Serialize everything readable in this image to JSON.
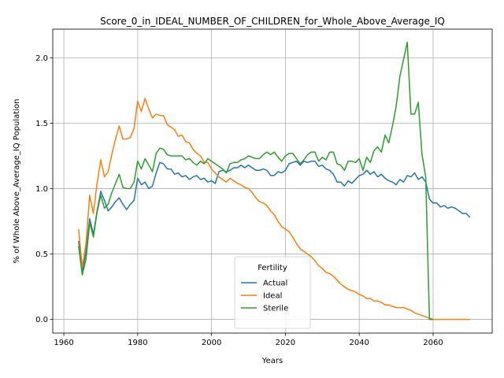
{
  "chart_data": {
    "type": "line",
    "title": "Score_0_in_IDEAL_NUMBER_OF_CHILDREN_for_Whole_Above_Average_IQ",
    "xlabel": "Years",
    "ylabel": "% of Whole Above_Average_IQ Population",
    "xlim": [
      1957,
      2076
    ],
    "ylim": [
      -0.105,
      2.22
    ],
    "xticks": [
      1960,
      1980,
      2000,
      2020,
      2040,
      2060
    ],
    "xtick_labels": [
      "1960",
      "1980",
      "2000",
      "2020",
      "2040",
      "2060"
    ],
    "yticks": [
      0.0,
      0.5,
      1.0,
      1.5,
      2.0
    ],
    "ytick_labels": [
      "0.0",
      "0.5",
      "1.0",
      "1.5",
      "2.0"
    ],
    "grid": true,
    "legend": {
      "title": "Fertility",
      "placement": "lower-center"
    },
    "series": [
      {
        "name": "Actual",
        "color": "#1f77b4",
        "x": [
          1964,
          1965,
          1966,
          1967,
          1968,
          1969,
          1970,
          1971,
          1972,
          1973,
          1974,
          1975,
          1976,
          1977,
          1978,
          1979,
          1980,
          1981,
          1982,
          1983,
          1984,
          1985,
          1986,
          1987,
          1988,
          1989,
          1990,
          1991,
          1992,
          1993,
          1994,
          1995,
          1996,
          1997,
          1998,
          1999,
          2000,
          2001,
          2002,
          2003,
          2004,
          2005,
          2006,
          2007,
          2008,
          2009,
          2010,
          2011,
          2012,
          2013,
          2014,
          2015,
          2016,
          2017,
          2018,
          2019,
          2020,
          2021,
          2022,
          2023,
          2024,
          2025,
          2026,
          2027,
          2028,
          2029,
          2030,
          2031,
          2032,
          2033,
          2034,
          2035,
          2036,
          2037,
          2038,
          2039,
          2040,
          2041,
          2042,
          2043,
          2044,
          2045,
          2046,
          2047,
          2048,
          2049,
          2050,
          2051,
          2052,
          2053,
          2054,
          2055,
          2056,
          2057,
          2058,
          2059,
          2060,
          2061,
          2062,
          2063,
          2064,
          2065,
          2066,
          2067,
          2068,
          2069,
          2070
        ],
        "y": [
          0.6,
          0.36,
          0.52,
          0.77,
          0.65,
          0.83,
          0.98,
          0.91,
          0.83,
          0.86,
          0.9,
          0.93,
          0.88,
          0.84,
          0.88,
          0.91,
          1.08,
          1.03,
          1.05,
          1.0,
          1.02,
          1.12,
          1.2,
          1.19,
          1.15,
          1.15,
          1.11,
          1.12,
          1.09,
          1.1,
          1.07,
          1.09,
          1.1,
          1.07,
          1.08,
          1.05,
          1.06,
          1.04,
          1.13,
          1.14,
          1.13,
          1.14,
          1.16,
          1.16,
          1.18,
          1.16,
          1.18,
          1.16,
          1.14,
          1.14,
          1.15,
          1.14,
          1.1,
          1.1,
          1.13,
          1.12,
          1.14,
          1.19,
          1.2,
          1.21,
          1.18,
          1.21,
          1.2,
          1.21,
          1.21,
          1.17,
          1.18,
          1.15,
          1.14,
          1.11,
          1.05,
          1.05,
          1.02,
          1.06,
          1.04,
          1.07,
          1.1,
          1.11,
          1.14,
          1.11,
          1.13,
          1.09,
          1.11,
          1.08,
          1.06,
          1.05,
          1.03,
          1.07,
          1.05,
          1.1,
          1.09,
          1.12,
          1.07,
          1.09,
          1.05,
          0.92,
          0.89,
          0.89,
          0.86,
          0.87,
          0.85,
          0.86,
          0.85,
          0.83,
          0.81,
          0.81,
          0.78
        ]
      },
      {
        "name": "Ideal",
        "color": "#ff7f0e",
        "x": [
          1964,
          1965,
          1966,
          1967,
          1968,
          1969,
          1970,
          1971,
          1972,
          1973,
          1974,
          1975,
          1976,
          1977,
          1978,
          1979,
          1980,
          1981,
          1982,
          1983,
          1984,
          1985,
          1986,
          1987,
          1988,
          1989,
          1990,
          1991,
          1992,
          1993,
          1994,
          1995,
          1996,
          1997,
          1998,
          1999,
          2000,
          2001,
          2002,
          2003,
          2004,
          2005,
          2006,
          2007,
          2008,
          2009,
          2010,
          2011,
          2012,
          2013,
          2014,
          2015,
          2016,
          2017,
          2018,
          2019,
          2020,
          2021,
          2022,
          2023,
          2024,
          2025,
          2026,
          2027,
          2028,
          2029,
          2030,
          2031,
          2032,
          2033,
          2034,
          2035,
          2036,
          2037,
          2038,
          2039,
          2040,
          2041,
          2042,
          2043,
          2044,
          2045,
          2046,
          2047,
          2048,
          2049,
          2050,
          2051,
          2052,
          2053,
          2054,
          2055,
          2056,
          2057,
          2058,
          2059,
          2060,
          2061,
          2062,
          2063,
          2064,
          2065,
          2066,
          2067,
          2068,
          2069,
          2070
        ],
        "y": [
          0.69,
          0.4,
          0.58,
          0.95,
          0.81,
          1.04,
          1.22,
          1.09,
          1.13,
          1.26,
          1.38,
          1.48,
          1.38,
          1.38,
          1.39,
          1.46,
          1.67,
          1.59,
          1.69,
          1.61,
          1.54,
          1.57,
          1.56,
          1.56,
          1.49,
          1.47,
          1.45,
          1.4,
          1.41,
          1.36,
          1.35,
          1.3,
          1.27,
          1.25,
          1.2,
          1.2,
          1.15,
          1.12,
          1.09,
          1.07,
          1.05,
          1.08,
          1.06,
          1.04,
          1.03,
          1.01,
          1.0,
          0.97,
          0.93,
          0.9,
          0.89,
          0.87,
          0.83,
          0.8,
          0.75,
          0.71,
          0.69,
          0.67,
          0.63,
          0.58,
          0.54,
          0.52,
          0.5,
          0.48,
          0.45,
          0.41,
          0.39,
          0.36,
          0.35,
          0.33,
          0.3,
          0.27,
          0.25,
          0.23,
          0.22,
          0.21,
          0.19,
          0.18,
          0.16,
          0.16,
          0.14,
          0.14,
          0.13,
          0.11,
          0.11,
          0.1,
          0.09,
          0.09,
          0.09,
          0.08,
          0.07,
          0.05,
          0.04,
          0.03,
          0.02,
          0.01,
          0.0,
          0.0,
          0.0,
          0.0,
          0.0,
          0.0,
          0.0,
          0.0,
          0.0,
          0.0,
          0.0
        ]
      },
      {
        "name": "Sterile",
        "color": "#2ca02c",
        "x": [
          1964,
          1965,
          1966,
          1967,
          1968,
          1969,
          1970,
          1971,
          1972,
          1973,
          1974,
          1975,
          1976,
          1977,
          1978,
          1979,
          1980,
          1981,
          1982,
          1983,
          1984,
          1985,
          1986,
          1987,
          1988,
          1989,
          1990,
          1991,
          1992,
          1993,
          1994,
          1995,
          1996,
          1997,
          1998,
          1999,
          2000,
          2001,
          2002,
          2003,
          2004,
          2005,
          2006,
          2007,
          2008,
          2009,
          2010,
          2011,
          2012,
          2013,
          2014,
          2015,
          2016,
          2017,
          2018,
          2019,
          2020,
          2021,
          2022,
          2023,
          2024,
          2025,
          2026,
          2027,
          2028,
          2029,
          2030,
          2031,
          2032,
          2033,
          2034,
          2035,
          2036,
          2037,
          2038,
          2039,
          2040,
          2041,
          2042,
          2043,
          2044,
          2045,
          2046,
          2047,
          2048,
          2049,
          2050,
          2051,
          2052,
          2053,
          2054,
          2055,
          2056,
          2057,
          2058,
          2059,
          2060
        ],
        "y": [
          0.56,
          0.34,
          0.46,
          0.74,
          0.63,
          0.82,
          0.95,
          0.85,
          0.88,
          0.97,
          1.04,
          1.11,
          1.01,
          1.0,
          1.0,
          1.05,
          1.21,
          1.15,
          1.23,
          1.18,
          1.13,
          1.27,
          1.31,
          1.3,
          1.26,
          1.25,
          1.25,
          1.25,
          1.25,
          1.22,
          1.23,
          1.2,
          1.18,
          1.21,
          1.19,
          1.23,
          1.21,
          1.19,
          1.17,
          1.15,
          1.12,
          1.19,
          1.2,
          1.2,
          1.22,
          1.23,
          1.25,
          1.24,
          1.23,
          1.23,
          1.26,
          1.28,
          1.26,
          1.28,
          1.24,
          1.21,
          1.25,
          1.27,
          1.27,
          1.23,
          1.19,
          1.22,
          1.26,
          1.28,
          1.28,
          1.21,
          1.24,
          1.22,
          1.28,
          1.28,
          1.19,
          1.18,
          1.14,
          1.21,
          1.21,
          1.2,
          1.23,
          1.14,
          1.24,
          1.2,
          1.29,
          1.32,
          1.28,
          1.41,
          1.35,
          1.48,
          1.63,
          1.86,
          1.99,
          2.12,
          1.57,
          1.57,
          1.66,
          1.26,
          1.09,
          0.0,
          0.0
        ]
      }
    ]
  }
}
